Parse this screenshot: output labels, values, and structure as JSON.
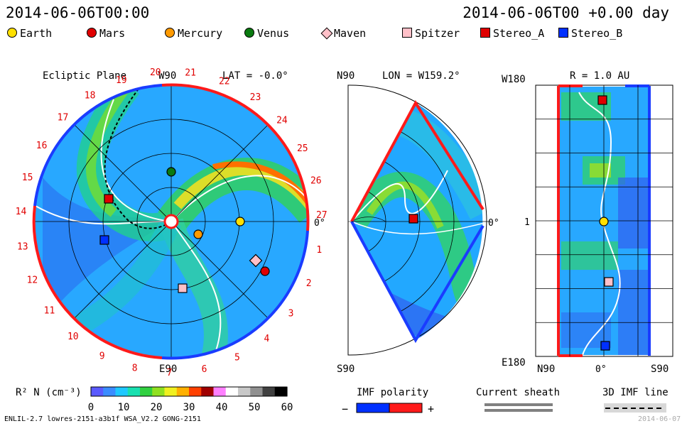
{
  "header": {
    "left": "2014-06-06T00:00",
    "right": "2014-06-06T00 +0.00 day"
  },
  "legend": [
    {
      "label": "Earth",
      "shape": "circle",
      "color": "#ffe000"
    },
    {
      "label": "Mars",
      "shape": "circle",
      "color": "#e00000"
    },
    {
      "label": "Mercury",
      "shape": "circle",
      "color": "#ff9a00"
    },
    {
      "label": "Venus",
      "shape": "circle",
      "color": "#0a7a10"
    },
    {
      "label": "Maven",
      "shape": "diamond",
      "color": "#ffc0c8"
    },
    {
      "label": "Spitzer",
      "shape": "square",
      "color": "#ffc0c8"
    },
    {
      "label": "Stereo_A",
      "shape": "square",
      "color": "#e00000"
    },
    {
      "label": "Stereo_B",
      "shape": "square",
      "color": "#0030ff"
    }
  ],
  "ecliptic": {
    "title": "Ecliptic Plane",
    "top": "W90",
    "bottom": "E90",
    "right": "0°",
    "lat": "LAT = -0.0°",
    "rot_labels": [
      "20",
      "21",
      "22",
      "23",
      "24",
      "25",
      "26",
      "27",
      "1",
      "2",
      "3",
      "4",
      "5",
      "6",
      "7",
      "8",
      "9",
      "10",
      "11",
      "12",
      "13",
      "14",
      "15",
      "16",
      "17",
      "18",
      "19"
    ]
  },
  "meridional": {
    "top": "N90",
    "bottom": "S90",
    "right": "0°",
    "lon": "LON = W159.2°"
  },
  "radial": {
    "title": "R = 1.0 AU",
    "top_left": "W180",
    "mid_left": "1",
    "bottom_left": "E180",
    "xl": "N90",
    "xm": "0°",
    "xr": "S90"
  },
  "colorbar": {
    "label": "R² N (cm⁻³)",
    "ticks": [
      "0",
      "10",
      "20",
      "30",
      "40",
      "50",
      "60"
    ],
    "colors": [
      "#5a5aff",
      "#3a8cff",
      "#1ec8ff",
      "#18e0b0",
      "#30d040",
      "#90e020",
      "#f0f020",
      "#ffb000",
      "#ff4000",
      "#a00000",
      "#ff80ff",
      "#ffffff",
      "#c8c8c8",
      "#909090",
      "#404040",
      "#000000"
    ]
  },
  "imf": {
    "label": "IMF polarity",
    "minus": "−",
    "plus": "+"
  },
  "sheath": {
    "label": "Current sheath"
  },
  "line3d": {
    "label": "3D IMF line"
  },
  "footer": "ENLIL-2.7 lowres-2151-a3b1f WSA_V2.2 GONG-2151",
  "footer_right": "2014-06-07"
}
